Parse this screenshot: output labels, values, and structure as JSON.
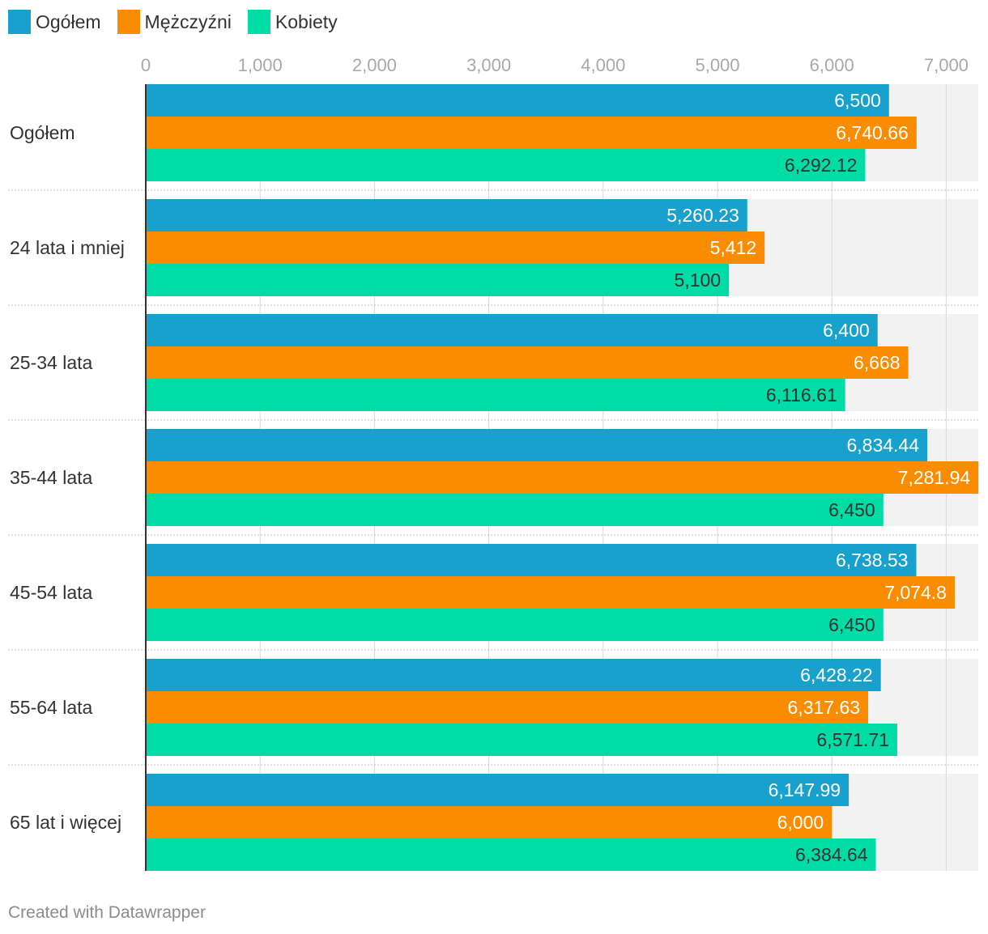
{
  "chart_data": {
    "type": "bar",
    "orientation": "horizontal",
    "title": "",
    "xlabel": "",
    "ylabel": "",
    "xlim": [
      0,
      7300
    ],
    "ticks": [
      0,
      1000,
      2000,
      3000,
      4000,
      5000,
      6000,
      7000
    ],
    "tick_labels": [
      "0",
      "1,000",
      "2,000",
      "3,000",
      "4,000",
      "5,000",
      "6,000",
      "7,000"
    ],
    "grid": true,
    "legend_position": "top-left",
    "categories": [
      "Ogółem",
      "24 lata i mniej",
      "25-34 lata",
      "35-44 lata",
      "45-54 lata",
      "55-64 lata",
      "65 lat i więcej"
    ],
    "series": [
      {
        "name": "Ogółem",
        "color": "#18a1cd",
        "label_color": "#ffffff",
        "values": [
          6500,
          5260.23,
          6400,
          6834.44,
          6738.53,
          6428.22,
          6147.99
        ],
        "labels": [
          "6,500",
          "5,260.23",
          "6,400",
          "6,834.44",
          "6,738.53",
          "6,428.22",
          "6,147.99"
        ]
      },
      {
        "name": "Mężczyźni",
        "color": "#fa8c00",
        "label_color": "#ffffff",
        "values": [
          6740.66,
          5412,
          6668,
          7281.94,
          7074.8,
          6317.63,
          6000
        ],
        "labels": [
          "6,740.66",
          "5,412",
          "6,668",
          "7,281.94",
          "7,074.8",
          "6,317.63",
          "6,000"
        ]
      },
      {
        "name": "Kobiety",
        "color": "#00dca6",
        "label_color": "#333333",
        "values": [
          6292.12,
          5100,
          6116.61,
          6450,
          6450,
          6571.71,
          6384.64
        ],
        "labels": [
          "6,292.12",
          "5,100",
          "6,116.61",
          "6,450",
          "6,450",
          "6,571.71",
          "6,384.64"
        ]
      }
    ]
  },
  "footer": {
    "credit": "Created with Datawrapper"
  }
}
